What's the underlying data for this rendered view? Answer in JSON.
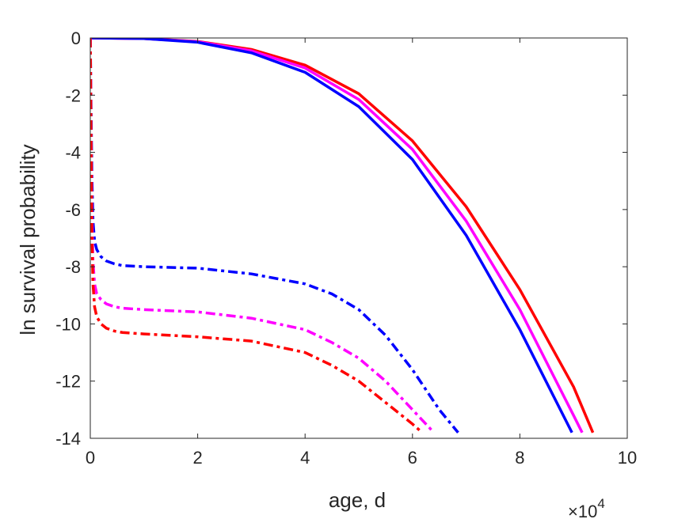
{
  "chart_data": {
    "type": "line",
    "title": "",
    "xlabel": "age, d",
    "ylabel": "ln survival probability",
    "x_multiplier_label": "×10",
    "x_multiplier_exponent": "4",
    "x_scale": 10000,
    "xlim": [
      0,
      100000
    ],
    "ylim": [
      -14,
      0
    ],
    "x_ticks": [
      0,
      20000,
      40000,
      60000,
      80000,
      100000
    ],
    "x_tick_labels": [
      "0",
      "2",
      "4",
      "6",
      "8",
      "10"
    ],
    "y_ticks": [
      0,
      -2,
      -4,
      -6,
      -8,
      -10,
      -12,
      -14
    ],
    "y_tick_labels": [
      "0",
      "-2",
      "-4",
      "-6",
      "-8",
      "-10",
      "-12",
      "-14"
    ],
    "grid": false,
    "legend": false,
    "series": [
      {
        "color": "#ff0000",
        "style": "solid",
        "x": [
          0,
          500,
          10000,
          20000,
          30000,
          40000,
          50000,
          60000,
          70000,
          80000,
          90000,
          93600
        ],
        "y": [
          0,
          0,
          -0.02,
          -0.12,
          -0.4,
          -0.95,
          -1.95,
          -3.6,
          -5.9,
          -8.8,
          -12.2,
          -13.8
        ]
      },
      {
        "color": "#ff00ff",
        "style": "solid",
        "x": [
          0,
          500,
          10000,
          20000,
          30000,
          40000,
          50000,
          60000,
          70000,
          80000,
          90000,
          91600
        ],
        "y": [
          0,
          0,
          -0.02,
          -0.13,
          -0.45,
          -1.05,
          -2.15,
          -3.9,
          -6.4,
          -9.5,
          -13.2,
          -13.8
        ]
      },
      {
        "color": "#0000ff",
        "style": "solid",
        "x": [
          0,
          500,
          10000,
          20000,
          30000,
          40000,
          50000,
          60000,
          70000,
          80000,
          89700
        ],
        "y": [
          0,
          0,
          -0.02,
          -0.15,
          -0.52,
          -1.2,
          -2.4,
          -4.25,
          -6.9,
          -10.2,
          -13.8
        ]
      },
      {
        "color": "#0000ff",
        "style": "dashdot",
        "x": [
          0,
          150,
          300,
          500,
          800,
          1200,
          2000,
          3000,
          4500,
          6000,
          10000,
          20000,
          30000,
          40000,
          45000,
          50000,
          55000,
          60000,
          65000,
          68500
        ],
        "y": [
          0,
          -2.5,
          -4.8,
          -6.4,
          -7.1,
          -7.4,
          -7.65,
          -7.8,
          -7.9,
          -7.96,
          -8.0,
          -8.05,
          -8.25,
          -8.6,
          -8.95,
          -9.5,
          -10.4,
          -11.6,
          -13.0,
          -13.8
        ]
      },
      {
        "color": "#ff00ff",
        "style": "dashdot",
        "x": [
          0,
          150,
          300,
          500,
          800,
          1200,
          2000,
          3000,
          4500,
          6000,
          10000,
          20000,
          30000,
          40000,
          45000,
          50000,
          55000,
          60000,
          64000
        ],
        "y": [
          0,
          -3.5,
          -6.2,
          -7.8,
          -8.6,
          -8.95,
          -9.15,
          -9.3,
          -9.4,
          -9.45,
          -9.5,
          -9.58,
          -9.8,
          -10.2,
          -10.65,
          -11.2,
          -12.0,
          -13.0,
          -13.8
        ]
      },
      {
        "color": "#ff0000",
        "style": "dashdot",
        "x": [
          0,
          150,
          300,
          500,
          800,
          1200,
          2000,
          3000,
          4500,
          6000,
          10000,
          20000,
          30000,
          40000,
          45000,
          50000,
          55000,
          60000,
          61800
        ],
        "y": [
          0,
          -3.8,
          -6.8,
          -8.6,
          -9.4,
          -9.75,
          -10.0,
          -10.15,
          -10.25,
          -10.3,
          -10.35,
          -10.45,
          -10.6,
          -11.0,
          -11.45,
          -12.0,
          -12.75,
          -13.5,
          -13.8
        ]
      }
    ]
  }
}
